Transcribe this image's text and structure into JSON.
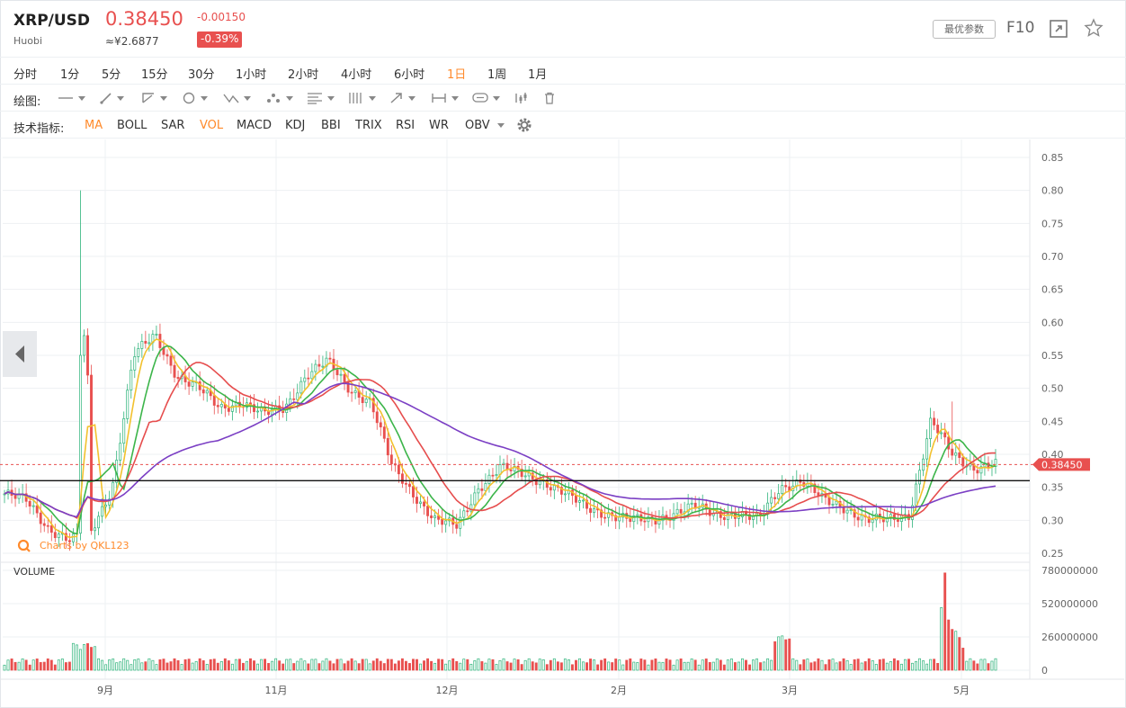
{
  "header": {
    "symbol": "XRP/USD",
    "exchange": "Huobi",
    "price": "0.38450",
    "cny": "≈¥2.6877",
    "change": "-0.00150",
    "change_pct": "-0.39%",
    "params_button": "最优参数",
    "f10_label": "F10"
  },
  "timeframes": [
    {
      "label": "分时"
    },
    {
      "label": "1分"
    },
    {
      "label": "5分"
    },
    {
      "label": "15分"
    },
    {
      "label": "30分"
    },
    {
      "label": "1小时"
    },
    {
      "label": "2小时"
    },
    {
      "label": "4小时"
    },
    {
      "label": "6小时"
    },
    {
      "label": "1日",
      "active": true
    },
    {
      "label": "1周"
    },
    {
      "label": "1月"
    }
  ],
  "drawing": {
    "label": "绘图:",
    "tools": [
      "line-tool-icon",
      "pencil-tool-icon",
      "ray-tool-icon",
      "circle-tool-icon",
      "path-tool-icon",
      "pattern-tool-icon",
      "fib-tool-icon",
      "gann-tool-icon",
      "arrow-tool-icon",
      "range-tool-icon",
      "comment-tool-icon",
      "chart-type-icon",
      "trash-icon"
    ]
  },
  "indicators": {
    "label": "技术指标:",
    "items": [
      {
        "label": "MA",
        "active": true
      },
      {
        "label": "BOLL"
      },
      {
        "label": "SAR"
      },
      {
        "label": "VOL",
        "active": true
      },
      {
        "label": "MACD"
      },
      {
        "label": "KDJ"
      },
      {
        "label": "BBI"
      },
      {
        "label": "TRIX"
      },
      {
        "label": "RSI"
      },
      {
        "label": "WR"
      },
      {
        "label": "OBV"
      }
    ]
  },
  "watermark": "Charts by QKL123",
  "volume_label": "VOLUME",
  "colors": {
    "up": "#2db37a",
    "down": "#e8504f",
    "accent": "#ff8a2b",
    "ma5": "#f2c12e",
    "ma10": "#3cb54a",
    "ma20": "#e64d4d",
    "ma60": "#7b3fc4"
  },
  "chart_data": {
    "type": "candlestick",
    "price_axis": {
      "ticks": [
        "0.85",
        "0.80",
        "0.75",
        "0.70",
        "0.65",
        "0.60",
        "0.55",
        "0.50",
        "0.45",
        "0.40",
        "0.35",
        "0.30",
        "0.25"
      ],
      "ylim": [
        0.25,
        0.85
      ]
    },
    "volume_axis": {
      "ticks": [
        "780000000",
        "520000000",
        "260000000",
        "0"
      ],
      "ylim": [
        0,
        780000000
      ]
    },
    "x_ticks": [
      "9月",
      "11月",
      "12月",
      "2月",
      "3月",
      "5月"
    ],
    "last_price": "0.38450",
    "support_line": 0.36,
    "close_path": [
      0.34,
      0.33,
      0.29,
      0.27,
      0.28,
      0.35,
      0.55,
      0.58,
      0.52,
      0.5,
      0.47,
      0.48,
      0.46,
      0.47,
      0.52,
      0.54,
      0.5,
      0.48,
      0.38,
      0.34,
      0.3,
      0.29,
      0.35,
      0.38,
      0.37,
      0.36,
      0.34,
      0.32,
      0.31,
      0.3,
      0.3,
      0.31,
      0.32,
      0.31,
      0.31,
      0.3,
      0.35,
      0.36,
      0.33,
      0.32,
      0.3,
      0.3,
      0.31,
      0.45,
      0.4,
      0.38,
      0.385
    ],
    "ma_series": [
      {
        "name": "MA5",
        "color": "#f2c12e"
      },
      {
        "name": "MA10",
        "color": "#3cb54a"
      },
      {
        "name": "MA20",
        "color": "#e64d4d"
      },
      {
        "name": "MA60",
        "color": "#7b3fc4"
      }
    ]
  }
}
